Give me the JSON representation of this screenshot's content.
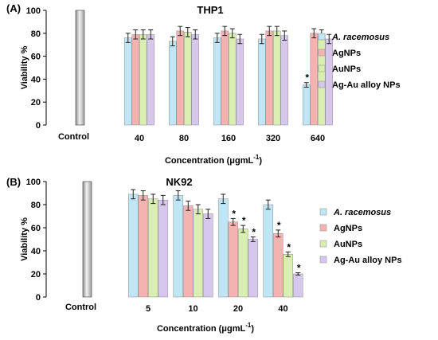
{
  "chart_data": [
    {
      "type": "bar",
      "panel_label": "(A)",
      "title": "THP1",
      "ylabel": "Viability %",
      "xlabel": "Concentration (μgmL",
      "xlabel_sup": "-1",
      "xlabel_close": ")",
      "ylim": [
        0,
        100
      ],
      "yticks": [
        0,
        20,
        40,
        60,
        80,
        100
      ],
      "control": {
        "label": "Control",
        "value": 100
      },
      "categories": [
        "40",
        "80",
        "160",
        "320",
        "640"
      ],
      "series": [
        {
          "name": "A. racemosus",
          "color": "#bfe6f4",
          "values": [
            76,
            73,
            76,
            75,
            35
          ],
          "errors": [
            4,
            4,
            4,
            4,
            2
          ],
          "stars": [
            false,
            false,
            false,
            false,
            true
          ]
        },
        {
          "name": "AgNPs",
          "color": "#f4b3b0",
          "values": [
            79,
            82,
            82,
            82,
            80
          ],
          "errors": [
            4,
            4,
            4,
            4,
            4
          ],
          "stars": [
            false,
            false,
            false,
            false,
            false
          ]
        },
        {
          "name": "AuNPs",
          "color": "#d9efb1",
          "values": [
            79,
            81,
            80,
            82,
            79
          ],
          "errors": [
            4,
            4,
            4,
            4,
            4
          ],
          "stars": [
            false,
            false,
            false,
            false,
            false
          ]
        },
        {
          "name": "Ag-Au alloy NPs",
          "color": "#d6c8ec",
          "values": [
            79,
            79,
            75,
            78,
            75
          ],
          "errors": [
            4,
            4,
            4,
            4,
            4
          ],
          "stars": [
            false,
            false,
            false,
            false,
            false
          ]
        }
      ]
    },
    {
      "type": "bar",
      "panel_label": "(B)",
      "title": "NK92",
      "ylabel": "Viability %",
      "xlabel": "Concentration (μgmL",
      "xlabel_sup": "-1",
      "xlabel_close": ")",
      "ylim": [
        0,
        100
      ],
      "yticks": [
        0,
        20,
        40,
        60,
        80,
        100
      ],
      "control": {
        "label": "Control",
        "value": 100
      },
      "categories": [
        "5",
        "10",
        "20",
        "40"
      ],
      "series": [
        {
          "name": "A. racemosus",
          "color": "#bfe6f4",
          "values": [
            89,
            88,
            85,
            80
          ],
          "errors": [
            4,
            4,
            4,
            4
          ],
          "stars": [
            false,
            false,
            false,
            false
          ]
        },
        {
          "name": "AgNPs",
          "color": "#f4b3b0",
          "values": [
            88,
            79,
            65,
            55
          ],
          "errors": [
            4,
            4,
            3,
            3
          ],
          "stars": [
            false,
            false,
            true,
            true
          ]
        },
        {
          "name": "AuNPs",
          "color": "#d9efb1",
          "values": [
            85,
            76,
            59,
            37
          ],
          "errors": [
            4,
            4,
            3,
            2
          ],
          "stars": [
            false,
            false,
            true,
            true
          ]
        },
        {
          "name": "Ag-Au alloy NPs",
          "color": "#d6c8ec",
          "values": [
            84,
            72,
            50,
            20
          ],
          "errors": [
            4,
            4,
            2,
            1
          ],
          "stars": [
            false,
            false,
            true,
            true
          ]
        }
      ]
    }
  ]
}
